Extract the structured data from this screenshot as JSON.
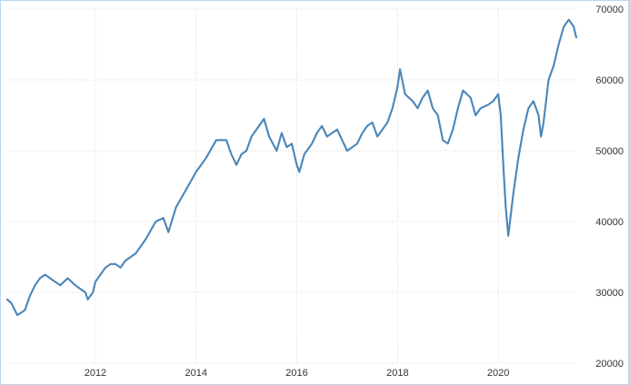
{
  "chart_data": {
    "type": "line",
    "title": "",
    "xlabel": "",
    "ylabel": "",
    "xlim": [
      2010.25,
      2021.55
    ],
    "ylim": [
      20000,
      70000
    ],
    "grid": true,
    "legend": "none",
    "line_color": "#4a86b9",
    "x_ticks": [
      {
        "value": 2012,
        "label": "2012"
      },
      {
        "value": 2014,
        "label": "2014"
      },
      {
        "value": 2016,
        "label": "2016"
      },
      {
        "value": 2018,
        "label": "2018"
      },
      {
        "value": 2020,
        "label": "2020"
      }
    ],
    "y_ticks": [
      {
        "value": 20000,
        "label": "20000"
      },
      {
        "value": 30000,
        "label": "30000"
      },
      {
        "value": 40000,
        "label": "40000"
      },
      {
        "value": 50000,
        "label": "50000"
      },
      {
        "value": 60000,
        "label": "60000"
      },
      {
        "value": 70000,
        "label": "70000"
      }
    ],
    "series": [
      {
        "x": [
          2010.25,
          2010.33,
          2010.4,
          2010.45,
          2010.5,
          2010.6,
          2010.7,
          2010.8,
          2010.9,
          2011.0,
          2011.1,
          2011.2,
          2011.3,
          2011.45,
          2011.6,
          2011.7,
          2011.8,
          2011.85,
          2011.95,
          2012.0,
          2012.1,
          2012.2,
          2012.3,
          2012.4,
          2012.5,
          2012.6,
          2012.8,
          2013.0,
          2013.2,
          2013.35,
          2013.45,
          2013.6,
          2013.8,
          2014.0,
          2014.2,
          2014.4,
          2014.6,
          2014.7,
          2014.8,
          2014.9,
          2015.0,
          2015.1,
          2015.2,
          2015.35,
          2015.45,
          2015.6,
          2015.7,
          2015.8,
          2015.9,
          2016.0,
          2016.05,
          2016.15,
          2016.3,
          2016.4,
          2016.5,
          2016.6,
          2016.8,
          2016.9,
          2017.0,
          2017.1,
          2017.2,
          2017.3,
          2017.4,
          2017.5,
          2017.6,
          2017.8,
          2017.9,
          2018.0,
          2018.05,
          2018.15,
          2018.3,
          2018.4,
          2018.5,
          2018.6,
          2018.7,
          2018.8,
          2018.9,
          2019.0,
          2019.1,
          2019.2,
          2019.3,
          2019.45,
          2019.55,
          2019.65,
          2019.8,
          2019.9,
          2020.0,
          2020.05,
          2020.1,
          2020.15,
          2020.2,
          2020.3,
          2020.4,
          2020.5,
          2020.6,
          2020.7,
          2020.8,
          2020.85,
          2020.9,
          2021.0,
          2021.1,
          2021.2,
          2021.3,
          2021.4,
          2021.5,
          2021.55
        ],
        "y": [
          29000,
          28500,
          27500,
          26800,
          27000,
          27500,
          29500,
          31000,
          32000,
          32500,
          32000,
          31500,
          31000,
          32000,
          31000,
          30500,
          30000,
          29000,
          30000,
          31500,
          32500,
          33500,
          34000,
          34000,
          33500,
          34500,
          35500,
          37500,
          40000,
          40500,
          38500,
          42000,
          44500,
          47000,
          49000,
          51500,
          51500,
          49500,
          48000,
          49500,
          50000,
          52000,
          53000,
          54500,
          52000,
          50000,
          52500,
          50500,
          51000,
          48000,
          47000,
          49500,
          51000,
          52500,
          53500,
          52000,
          53000,
          51500,
          50000,
          50500,
          51000,
          52500,
          53500,
          54000,
          52000,
          54000,
          56000,
          59000,
          61500,
          58000,
          57000,
          56000,
          57500,
          58500,
          56000,
          55000,
          51500,
          51000,
          53000,
          56000,
          58500,
          57500,
          55000,
          56000,
          56500,
          57000,
          58000,
          55000,
          48000,
          42000,
          38000,
          44000,
          49000,
          53000,
          56000,
          57000,
          55000,
          52000,
          54000,
          60000,
          62000,
          65000,
          67500,
          68500,
          67500,
          66000
        ]
      }
    ]
  }
}
